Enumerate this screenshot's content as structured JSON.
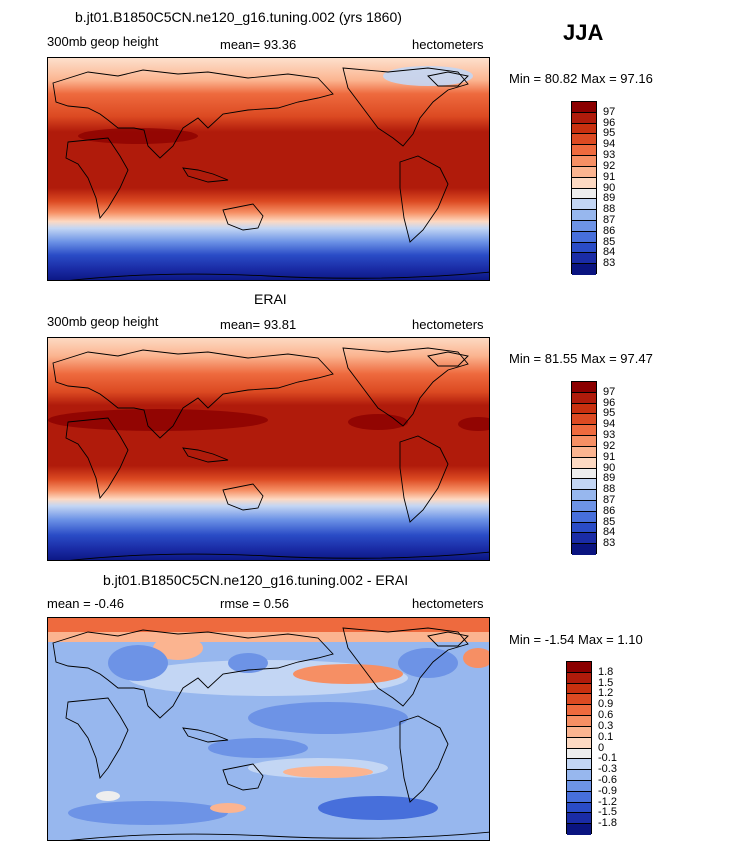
{
  "season": "JJA",
  "panels": [
    {
      "title": "b.jt01.B1850C5CN.ne120_g16.tuning.002 (yrs 1860)",
      "left_label": "300mb geop height",
      "center_label": "mean=  93.36",
      "right_label": "hectometers",
      "minmax": "Min =  80.82 Max =  97.16",
      "colorbar": {
        "labels": [
          "97",
          "96",
          "95",
          "94",
          "93",
          "92",
          "91",
          "90",
          "89",
          "88",
          "87",
          "86",
          "85",
          "84",
          "83"
        ],
        "colors": [
          "#8b0000",
          "#b01b0b",
          "#c8300f",
          "#dc4a22",
          "#ee6a3e",
          "#f68f64",
          "#fbb490",
          "#fdd9c2",
          "#eeeeee",
          "#c3d6f4",
          "#97b7ee",
          "#6d93e6",
          "#476fdb",
          "#2a4cc6",
          "#1a2ca6",
          "#0a1480"
        ]
      }
    },
    {
      "title": "ERAI",
      "left_label": "300mb geop height",
      "center_label": "mean=  93.81",
      "right_label": "hectometers",
      "minmax": "Min =  81.55 Max =  97.47",
      "colorbar": {
        "labels": [
          "97",
          "96",
          "95",
          "94",
          "93",
          "92",
          "91",
          "90",
          "89",
          "88",
          "87",
          "86",
          "85",
          "84",
          "83"
        ],
        "colors": [
          "#8b0000",
          "#b01b0b",
          "#c8300f",
          "#dc4a22",
          "#ee6a3e",
          "#f68f64",
          "#fbb490",
          "#fdd9c2",
          "#eeeeee",
          "#c3d6f4",
          "#97b7ee",
          "#6d93e6",
          "#476fdb",
          "#2a4cc6",
          "#1a2ca6",
          "#0a1480"
        ]
      }
    },
    {
      "title": "b.jt01.B1850C5CN.ne120_g16.tuning.002 - ERAI",
      "left_label": "mean =   -0.46",
      "center_label": "rmse =    0.56",
      "right_label": "hectometers",
      "minmax": "Min =  -1.54 Max =   1.10",
      "colorbar": {
        "labels": [
          "1.8",
          "1.5",
          "1.2",
          "0.9",
          "0.6",
          "0.3",
          "0.1",
          "0",
          "-0.1",
          "-0.3",
          "-0.6",
          "-0.9",
          "-1.2",
          "-1.5",
          "-1.8"
        ],
        "colors": [
          "#8b0000",
          "#b01b0b",
          "#c8300f",
          "#dc4a22",
          "#ee6a3e",
          "#f68f64",
          "#fbb490",
          "#fdd9c2",
          "#eeeeee",
          "#c3d6f4",
          "#97b7ee",
          "#6d93e6",
          "#476fdb",
          "#2a4cc6",
          "#1a2ca6",
          "#0a1480"
        ]
      }
    }
  ]
}
